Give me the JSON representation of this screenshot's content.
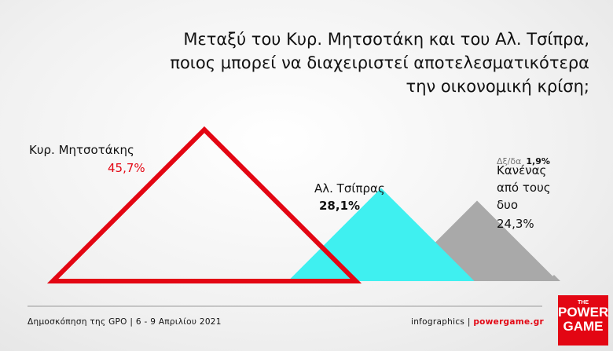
{
  "chart_data": {
    "type": "triangle",
    "title": [
      "Μεταξύ του Κυρ. Μητσοτάκη και του Αλ. Τσίπρα,",
      "ποιος μπορεί να διαχειριστεί αποτελεσματικότερα",
      "την οικονομική κρίση;"
    ],
    "categories": [
      "Κυρ. Μητσοτάκης",
      "Αλ. Τσίπρας",
      "Κανένας από τους δυο",
      "Δξ/δα"
    ],
    "values": [
      45.7,
      28.1,
      24.3,
      1.9
    ],
    "value_labels": [
      "45,7%",
      "28,1%",
      "24,3%",
      "1,9%"
    ],
    "colors": [
      "#e30613",
      "#3ff0f0",
      "#a9a9a9",
      "#a9a9a9"
    ],
    "source": "Δημοσκόπηση της GPO | 6 - 9 Απριλίου 2021",
    "credit": "infographics |",
    "site": "powergame.gr",
    "logo": [
      "THE",
      "POWER",
      "GAME"
    ]
  }
}
